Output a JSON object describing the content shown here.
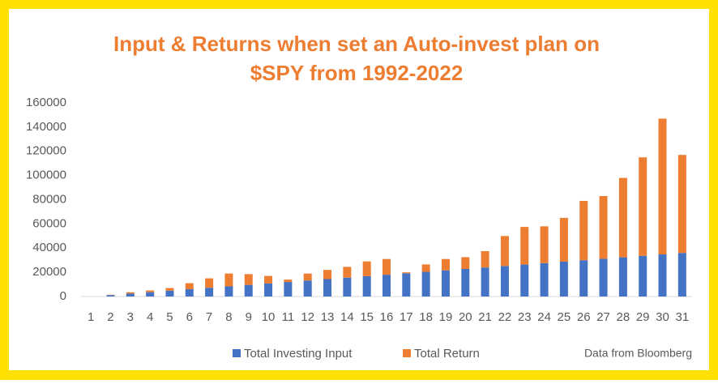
{
  "chart_data": {
    "type": "stacked_bar",
    "title_lines": [
      "Input & Returns when set an Auto-invest plan on",
      "$SPY from 1992-2022"
    ],
    "note": "Data from Bloomberg",
    "categories": [
      "1",
      "2",
      "3",
      "4",
      "5",
      "6",
      "7",
      "8",
      "9",
      "10",
      "11",
      "12",
      "13",
      "14",
      "15",
      "16",
      "17",
      "18",
      "19",
      "20",
      "21",
      "22",
      "23",
      "24",
      "25",
      "26",
      "27",
      "28",
      "29",
      "30",
      "31"
    ],
    "series": [
      {
        "name": "Total Investing Input",
        "color": "#4472c4",
        "values": [
          0,
          1200,
          2400,
          3600,
          4800,
          6000,
          7200,
          8400,
          9600,
          10800,
          12000,
          13200,
          14400,
          15600,
          16800,
          18000,
          19200,
          20400,
          21600,
          22800,
          24000,
          25200,
          26400,
          27600,
          28800,
          30000,
          31200,
          32400,
          33600,
          34800,
          36000
        ]
      },
      {
        "name": "Total Return",
        "color": "#ed7d31",
        "values": [
          0,
          300,
          1100,
          1400,
          2200,
          5000,
          7800,
          10600,
          8900,
          6200,
          2000,
          5800,
          7600,
          8900,
          12200,
          13000,
          800,
          6100,
          9400,
          9700,
          13500,
          24800,
          31100,
          30400,
          36200,
          49000,
          51800,
          65600,
          81400,
          112200,
          81000
        ]
      }
    ],
    "ylim": [
      0,
      160000
    ],
    "yticks": [
      0,
      20000,
      40000,
      60000,
      80000,
      100000,
      120000,
      140000,
      160000
    ],
    "grid": false
  }
}
